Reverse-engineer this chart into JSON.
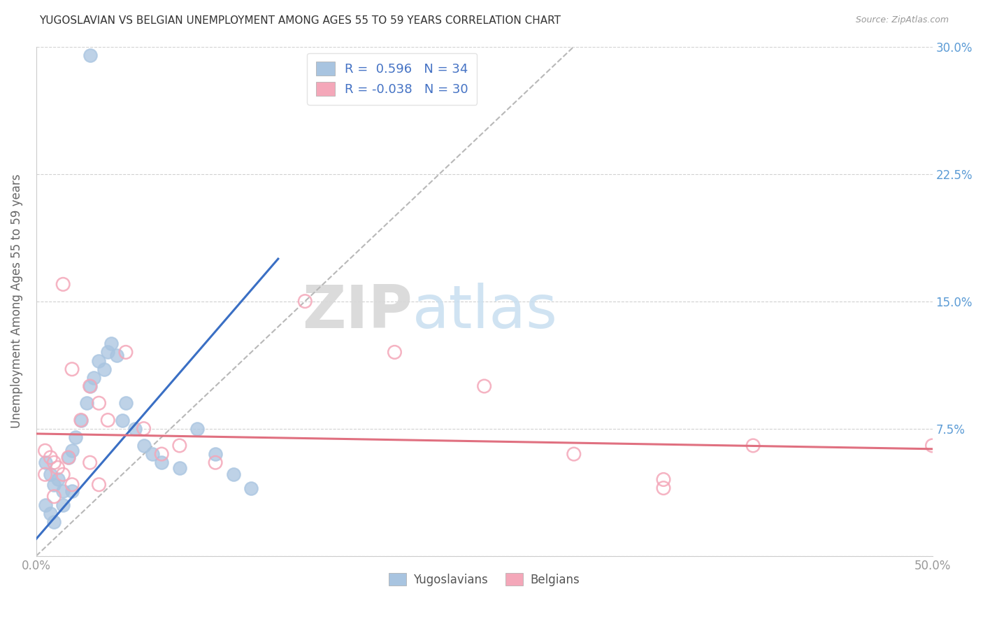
{
  "title": "YUGOSLAVIAN VS BELGIAN UNEMPLOYMENT AMONG AGES 55 TO 59 YEARS CORRELATION CHART",
  "source": "Source: ZipAtlas.com",
  "ylabel": "Unemployment Among Ages 55 to 59 years",
  "xlim": [
    0.0,
    0.5
  ],
  "ylim": [
    0.0,
    0.3
  ],
  "xticks": [
    0.0,
    0.1,
    0.2,
    0.3,
    0.4,
    0.5
  ],
  "yticks": [
    0.0,
    0.075,
    0.15,
    0.225,
    0.3
  ],
  "right_ytick_labels": [
    "",
    "7.5%",
    "15.0%",
    "22.5%",
    "30.0%"
  ],
  "xtick_labels": [
    "0.0%",
    "",
    "",
    "",
    "",
    "50.0%"
  ],
  "yug_R": 0.596,
  "yug_N": 34,
  "bel_R": -0.038,
  "bel_N": 30,
  "yug_color": "#a8c4e0",
  "bel_color": "#f4a7b9",
  "yug_line_color": "#3a6fc4",
  "bel_line_color": "#e07080",
  "diag_color": "#b8b8b8",
  "legend_text_color": "#4472c4",
  "yug_scatter_x": [
    0.005,
    0.008,
    0.01,
    0.012,
    0.015,
    0.018,
    0.02,
    0.022,
    0.025,
    0.028,
    0.03,
    0.032,
    0.035,
    0.038,
    0.04,
    0.042,
    0.045,
    0.048,
    0.05,
    0.055,
    0.06,
    0.065,
    0.07,
    0.08,
    0.09,
    0.1,
    0.11,
    0.12,
    0.005,
    0.008,
    0.01,
    0.015,
    0.02,
    0.03
  ],
  "yug_scatter_y": [
    0.055,
    0.048,
    0.042,
    0.045,
    0.038,
    0.058,
    0.062,
    0.07,
    0.08,
    0.09,
    0.1,
    0.105,
    0.115,
    0.11,
    0.12,
    0.125,
    0.118,
    0.08,
    0.09,
    0.075,
    0.065,
    0.06,
    0.055,
    0.052,
    0.075,
    0.06,
    0.048,
    0.04,
    0.03,
    0.025,
    0.02,
    0.03,
    0.038,
    0.295
  ],
  "bel_scatter_x": [
    0.005,
    0.008,
    0.01,
    0.012,
    0.015,
    0.018,
    0.02,
    0.025,
    0.03,
    0.035,
    0.04,
    0.05,
    0.06,
    0.07,
    0.08,
    0.1,
    0.15,
    0.2,
    0.25,
    0.3,
    0.35,
    0.4,
    0.005,
    0.01,
    0.015,
    0.02,
    0.03,
    0.035,
    0.35,
    0.5
  ],
  "bel_scatter_y": [
    0.062,
    0.058,
    0.055,
    0.052,
    0.16,
    0.058,
    0.11,
    0.08,
    0.1,
    0.09,
    0.08,
    0.12,
    0.075,
    0.06,
    0.065,
    0.055,
    0.15,
    0.12,
    0.1,
    0.06,
    0.04,
    0.065,
    0.048,
    0.035,
    0.048,
    0.042,
    0.055,
    0.042,
    0.045,
    0.065
  ],
  "yug_line_x": [
    0.0,
    0.135
  ],
  "yug_line_y": [
    0.01,
    0.175
  ],
  "bel_line_x": [
    0.0,
    0.5
  ],
  "bel_line_y": [
    0.072,
    0.063
  ],
  "diag_line_x": [
    0.0,
    0.3
  ],
  "diag_line_y": [
    0.0,
    0.3
  ],
  "watermark1": "ZIP",
  "watermark2": "atlas",
  "background_color": "#ffffff"
}
